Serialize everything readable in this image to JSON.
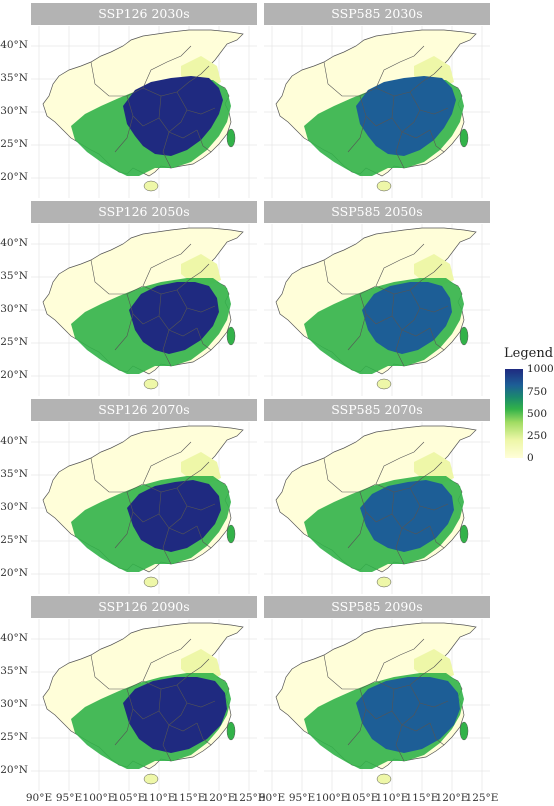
{
  "panels": [
    {
      "title": "SSP126 2030s"
    },
    {
      "title": "SSP585 2030s"
    },
    {
      "title": "SSP126 2050s"
    },
    {
      "title": "SSP585 2050s"
    },
    {
      "title": "SSP126 2070s"
    },
    {
      "title": "SSP585 2070s"
    },
    {
      "title": "SSP126 2090s"
    },
    {
      "title": "SSP585 2090s"
    }
  ],
  "y_ticks": [
    "40°N",
    "35°N",
    "30°N",
    "25°N",
    "20°N"
  ],
  "x_ticks": [
    "90°E",
    "95°E",
    "100°E",
    "105°E",
    "110°E",
    "115°E",
    "120°E",
    "125°E"
  ],
  "legend": {
    "title": "Legend",
    "ticks": [
      "1000",
      "750",
      "500",
      "250",
      "0"
    ]
  },
  "colors": {
    "low": "#fffed9",
    "mid_low": "#eef7a8",
    "mid": "#32b249",
    "high": "#1d5e96",
    "max": "#1f2a80",
    "strip": "#b3b3b3"
  }
}
